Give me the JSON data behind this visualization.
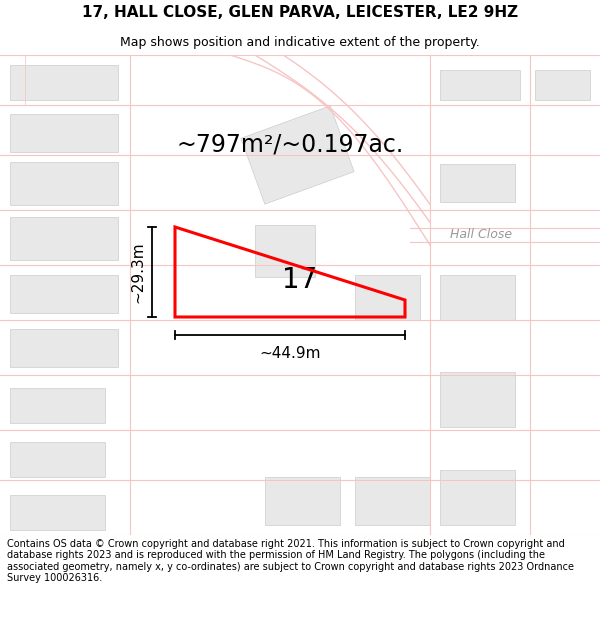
{
  "title_line1": "17, HALL CLOSE, GLEN PARVA, LEICESTER, LE2 9HZ",
  "title_line2": "Map shows position and indicative extent of the property.",
  "footer_text": "Contains OS data © Crown copyright and database right 2021. This information is subject to Crown copyright and database rights 2023 and is reproduced with the permission of HM Land Registry. The polygons (including the associated geometry, namely x, y co-ordinates) are subject to Crown copyright and database rights 2023 Ordnance Survey 100026316.",
  "background_color": "#ffffff",
  "road_color": "#f7c4c4",
  "road_lw": 0.8,
  "property_color": "#ff0000",
  "building_color": "#e8e8e8",
  "building_edge": "#cccccc",
  "annotation_color": "#000000",
  "road_label": "Hall Close",
  "property_number": "17",
  "area_label": "~797m²/~0.197ac.",
  "width_label": "~44.9m",
  "height_label": "~29.3m",
  "title_fontsize": 11,
  "subtitle_fontsize": 9,
  "area_fontsize": 17,
  "number_fontsize": 20,
  "dim_fontsize": 11,
  "road_label_fontsize": 9
}
